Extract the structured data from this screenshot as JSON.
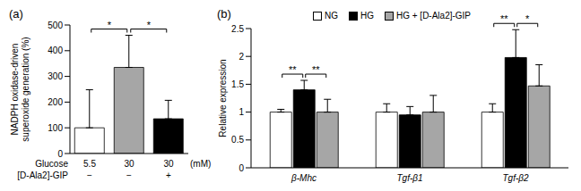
{
  "chart_data": [
    {
      "type": "bar",
      "title": "(a)",
      "y_label": "NADPH oxidase-driven superoxide generation (%)",
      "categories": [
        null,
        null,
        null
      ],
      "x_table": [
        {
          "label": "Glucose",
          "values": [
            "5.5",
            "30",
            "30"
          ],
          "unit": "(mM)"
        },
        {
          "label": "[D-Ala2]-GIP",
          "values": [
            "−",
            "−",
            "+"
          ]
        }
      ],
      "values": [
        100,
        335,
        135
      ],
      "errors": [
        148,
        125,
        72
      ],
      "colors": [
        "#ffffff",
        "#a6a6a6",
        "#000000"
      ],
      "ylim": [
        0,
        500
      ],
      "yticks": [
        0,
        100,
        200,
        300,
        400,
        500
      ],
      "significance": [
        {
          "from": 0,
          "to": 1,
          "label": "*"
        },
        {
          "from": 1,
          "to": 2,
          "label": "*"
        }
      ]
    },
    {
      "type": "bar",
      "title": "(b)",
      "y_label": "Relative expression",
      "categories": [
        "β-Mhc",
        "Tgf-β1",
        "Tgf-β2"
      ],
      "series": [
        {
          "name": "NG",
          "color": "#ffffff",
          "values": [
            1,
            1,
            1
          ],
          "errors": [
            0.05,
            0.15,
            0.15
          ]
        },
        {
          "name": "HG",
          "color": "#000000",
          "values": [
            1.4,
            0.95,
            1.98
          ],
          "errors": [
            0.17,
            0.15,
            0.5
          ]
        },
        {
          "name": "HG + [D-Ala2]-GIP",
          "color": "#a6a6a6",
          "values": [
            1,
            1,
            1.47
          ],
          "errors": [
            0.23,
            0.3,
            0.38
          ]
        }
      ],
      "ylim": [
        0,
        2.5
      ],
      "yticks": [
        0,
        0.5,
        1,
        1.5,
        2,
        2.5
      ],
      "legend": "top",
      "significance": [
        {
          "category": 0,
          "from": 0,
          "to": 1,
          "label": "**"
        },
        {
          "category": 0,
          "from": 1,
          "to": 2,
          "label": "**"
        },
        {
          "category": 2,
          "from": 0,
          "to": 1,
          "label": "**"
        },
        {
          "category": 2,
          "from": 1,
          "to": 2,
          "label": "*"
        }
      ]
    }
  ]
}
